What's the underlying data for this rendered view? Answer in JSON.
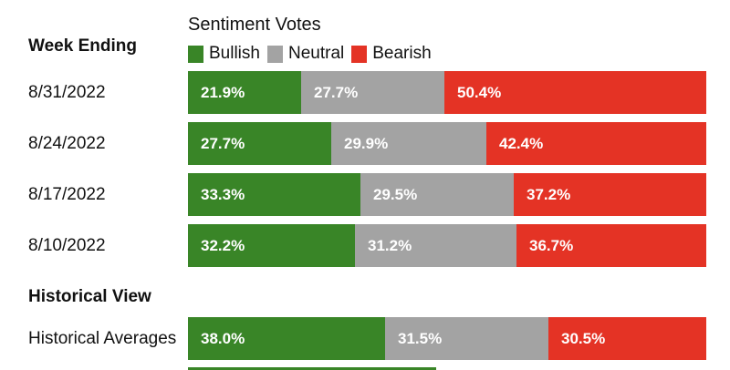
{
  "legend": {
    "title": "Sentiment Votes",
    "items": [
      {
        "label": "Bullish",
        "color": "#398527"
      },
      {
        "label": "Neutral",
        "color": "#a3a3a3"
      },
      {
        "label": "Bearish",
        "color": "#e43325"
      }
    ]
  },
  "headings": {
    "week_ending": "Week Ending",
    "historical_view": "Historical View"
  },
  "chart_data": {
    "type": "bar",
    "stacked": true,
    "orientation": "horizontal",
    "title": "Sentiment Votes",
    "categories": [
      "8/31/2022",
      "8/24/2022",
      "8/17/2022",
      "8/10/2022",
      "Historical Averages"
    ],
    "series": [
      {
        "name": "Bullish",
        "values": [
          21.9,
          27.7,
          33.3,
          32.2,
          38.0
        ],
        "labels": [
          "21.9%",
          "27.7%",
          "33.3%",
          "32.2%",
          "38.0%"
        ]
      },
      {
        "name": "Neutral",
        "values": [
          27.7,
          29.9,
          29.5,
          31.2,
          31.5
        ],
        "labels": [
          "27.7%",
          "29.9%",
          "29.5%",
          "31.2%",
          "31.5%"
        ]
      },
      {
        "name": "Bearish",
        "values": [
          50.4,
          42.4,
          37.2,
          36.7,
          30.5
        ],
        "labels": [
          "50.4%",
          "42.4%",
          "37.2%",
          "36.7%",
          "30.5%"
        ]
      }
    ],
    "xlim": [
      0,
      100
    ],
    "legend_position": "top"
  }
}
